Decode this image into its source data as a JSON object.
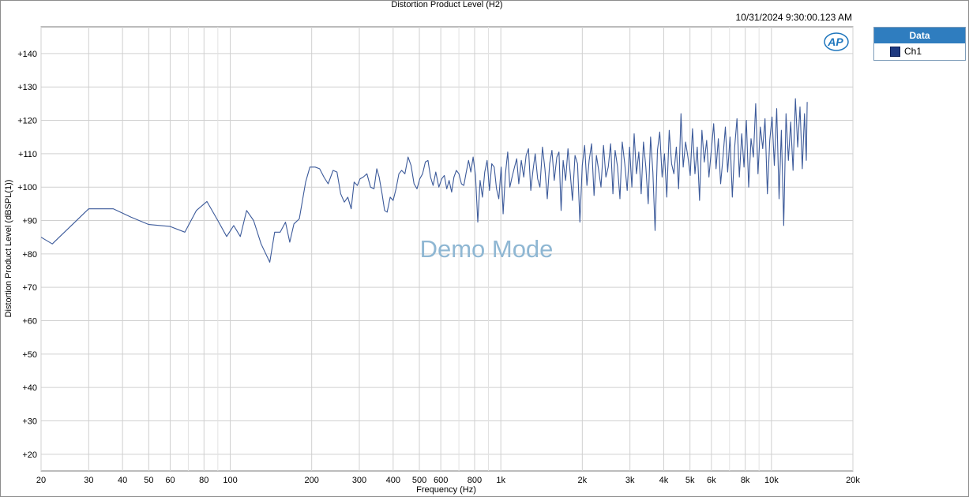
{
  "chart_data": {
    "type": "line",
    "title": "Distortion Product Level (H2)",
    "timestamp": "10/31/2024 9:30:00.123 AM",
    "xlabel": "Frequency (Hz)",
    "ylabel": "Distortion Product Level (dBSPL(1))",
    "x_scale": "log",
    "xlim": [
      20,
      20000
    ],
    "ylim": [
      15,
      148
    ],
    "grid": true,
    "legend_position": "right",
    "watermark": "Demo Mode",
    "x_ticks": [
      {
        "value": 20,
        "label": "20"
      },
      {
        "value": 30,
        "label": "30"
      },
      {
        "value": 40,
        "label": "40"
      },
      {
        "value": 50,
        "label": "50"
      },
      {
        "value": 60,
        "label": "60"
      },
      {
        "value": 80,
        "label": "80"
      },
      {
        "value": 100,
        "label": "100"
      },
      {
        "value": 200,
        "label": "200"
      },
      {
        "value": 300,
        "label": "300"
      },
      {
        "value": 400,
        "label": "400"
      },
      {
        "value": 500,
        "label": "500"
      },
      {
        "value": 600,
        "label": "600"
      },
      {
        "value": 800,
        "label": "800"
      },
      {
        "value": 1000,
        "label": "1k"
      },
      {
        "value": 2000,
        "label": "2k"
      },
      {
        "value": 3000,
        "label": "3k"
      },
      {
        "value": 4000,
        "label": "4k"
      },
      {
        "value": 5000,
        "label": "5k"
      },
      {
        "value": 6000,
        "label": "6k"
      },
      {
        "value": 8000,
        "label": "8k"
      },
      {
        "value": 10000,
        "label": "10k"
      },
      {
        "value": 20000,
        "label": "20k"
      }
    ],
    "x_minor": [
      70,
      90,
      700,
      900,
      7000,
      9000
    ],
    "y_ticks": [
      {
        "value": 20,
        "label": "+20"
      },
      {
        "value": 30,
        "label": "+30"
      },
      {
        "value": 40,
        "label": "+40"
      },
      {
        "value": 50,
        "label": "+50"
      },
      {
        "value": 60,
        "label": "+60"
      },
      {
        "value": 70,
        "label": "+70"
      },
      {
        "value": 80,
        "label": "+80"
      },
      {
        "value": 90,
        "label": "+90"
      },
      {
        "value": 100,
        "label": "+100"
      },
      {
        "value": 110,
        "label": "+110"
      },
      {
        "value": 120,
        "label": "+120"
      },
      {
        "value": 130,
        "label": "+130"
      },
      {
        "value": 140,
        "label": "+140"
      }
    ],
    "series": [
      {
        "name": "Ch1",
        "color": "#3c5a9a",
        "points": [
          [
            20,
            85.0
          ],
          [
            22,
            83.0
          ],
          [
            30,
            93.5
          ],
          [
            37,
            93.5
          ],
          [
            43,
            91.0
          ],
          [
            50,
            88.8
          ],
          [
            60,
            88.2
          ],
          [
            68,
            86.5
          ],
          [
            75,
            93.0
          ],
          [
            82,
            95.7
          ],
          [
            90,
            90.0
          ],
          [
            97,
            85.2
          ],
          [
            103,
            88.5
          ],
          [
            109,
            85.2
          ],
          [
            115,
            93.0
          ],
          [
            122,
            90.0
          ],
          [
            130,
            83.0
          ],
          [
            140,
            77.5
          ],
          [
            146,
            86.5
          ],
          [
            153,
            86.5
          ],
          [
            160,
            89.5
          ],
          [
            166,
            83.5
          ],
          [
            172,
            89.0
          ],
          [
            180,
            90.5
          ],
          [
            190,
            101.5
          ],
          [
            197,
            106.0
          ],
          [
            206,
            106.0
          ],
          [
            214,
            105.5
          ],
          [
            222,
            103.0
          ],
          [
            230,
            101.0
          ],
          [
            240,
            105.0
          ],
          [
            248,
            104.5
          ],
          [
            256,
            98.0
          ],
          [
            264,
            95.5
          ],
          [
            272,
            97.0
          ],
          [
            280,
            93.5
          ],
          [
            287,
            101.5
          ],
          [
            295,
            100.5
          ],
          [
            302,
            102.5
          ],
          [
            310,
            103.0
          ],
          [
            320,
            104.0
          ],
          [
            330,
            100.0
          ],
          [
            340,
            99.5
          ],
          [
            348,
            105.5
          ],
          [
            355,
            103.0
          ],
          [
            364,
            98.0
          ],
          [
            372,
            93.0
          ],
          [
            380,
            92.5
          ],
          [
            390,
            97.0
          ],
          [
            400,
            96.0
          ],
          [
            410,
            99.5
          ],
          [
            420,
            104.0
          ],
          [
            430,
            105.0
          ],
          [
            442,
            104.0
          ],
          [
            454,
            109.0
          ],
          [
            466,
            106.5
          ],
          [
            478,
            101.0
          ],
          [
            490,
            99.5
          ],
          [
            502,
            102.5
          ],
          [
            514,
            104.0
          ],
          [
            526,
            107.5
          ],
          [
            538,
            108.0
          ],
          [
            550,
            103.0
          ],
          [
            562,
            100.5
          ],
          [
            575,
            104.5
          ],
          [
            590,
            100.0
          ],
          [
            605,
            102.5
          ],
          [
            618,
            103.5
          ],
          [
            631,
            99.5
          ],
          [
            644,
            102.0
          ],
          [
            658,
            98.5
          ],
          [
            671,
            103.0
          ],
          [
            685,
            105.0
          ],
          [
            700,
            104.0
          ],
          [
            715,
            101.0
          ],
          [
            730,
            100.5
          ],
          [
            745,
            104.5
          ],
          [
            760,
            108.0
          ],
          [
            775,
            104.5
          ],
          [
            790,
            109.0
          ],
          [
            806,
            103.5
          ],
          [
            822,
            89.5
          ],
          [
            838,
            102.0
          ],
          [
            855,
            97.0
          ],
          [
            872,
            104.5
          ],
          [
            890,
            108.0
          ],
          [
            908,
            99.0
          ],
          [
            926,
            107.0
          ],
          [
            945,
            106.0
          ],
          [
            964,
            99.5
          ],
          [
            983,
            96.5
          ],
          [
            1003,
            106.0
          ],
          [
            1020,
            92.0
          ],
          [
            1040,
            104.0
          ],
          [
            1060,
            110.5
          ],
          [
            1080,
            100.0
          ],
          [
            1100,
            103.0
          ],
          [
            1120,
            105.5
          ],
          [
            1145,
            108.5
          ],
          [
            1165,
            101.0
          ],
          [
            1190,
            108.0
          ],
          [
            1215,
            103.0
          ],
          [
            1240,
            109.5
          ],
          [
            1265,
            111.5
          ],
          [
            1290,
            99.0
          ],
          [
            1315,
            105.0
          ],
          [
            1340,
            110.0
          ],
          [
            1368,
            102.5
          ],
          [
            1395,
            100.0
          ],
          [
            1425,
            112.0
          ],
          [
            1455,
            105.5
          ],
          [
            1485,
            96.5
          ],
          [
            1515,
            107.0
          ],
          [
            1545,
            111.0
          ],
          [
            1575,
            102.0
          ],
          [
            1610,
            109.0
          ],
          [
            1640,
            110.5
          ],
          [
            1670,
            93.0
          ],
          [
            1700,
            108.0
          ],
          [
            1735,
            102.0
          ],
          [
            1770,
            111.5
          ],
          [
            1805,
            104.0
          ],
          [
            1840,
            96.0
          ],
          [
            1880,
            109.5
          ],
          [
            1920,
            107.0
          ],
          [
            1960,
            89.5
          ],
          [
            2000,
            106.5
          ],
          [
            2040,
            112.5
          ],
          [
            2080,
            100.5
          ],
          [
            2120,
            108.0
          ],
          [
            2165,
            113.0
          ],
          [
            2210,
            97.5
          ],
          [
            2255,
            109.5
          ],
          [
            2300,
            105.0
          ],
          [
            2345,
            100.0
          ],
          [
            2395,
            112.5
          ],
          [
            2445,
            103.0
          ],
          [
            2495,
            106.0
          ],
          [
            2545,
            113.0
          ],
          [
            2595,
            98.0
          ],
          [
            2645,
            111.0
          ],
          [
            2700,
            106.0
          ],
          [
            2755,
            96.5
          ],
          [
            2810,
            113.5
          ],
          [
            2870,
            107.0
          ],
          [
            2930,
            99.0
          ],
          [
            2990,
            112.0
          ],
          [
            3050,
            100.0
          ],
          [
            3110,
            116.0
          ],
          [
            3170,
            104.0
          ],
          [
            3235,
            110.5
          ],
          [
            3300,
            98.0
          ],
          [
            3365,
            113.5
          ],
          [
            3435,
            106.0
          ],
          [
            3505,
            95.0
          ],
          [
            3575,
            115.0
          ],
          [
            3645,
            104.5
          ],
          [
            3715,
            87.0
          ],
          [
            3790,
            111.0
          ],
          [
            3865,
            116.5
          ],
          [
            3945,
            103.0
          ],
          [
            4025,
            110.0
          ],
          [
            4105,
            97.0
          ],
          [
            4190,
            117.0
          ],
          [
            4275,
            107.0
          ],
          [
            4360,
            104.0
          ],
          [
            4450,
            112.0
          ],
          [
            4540,
            99.5
          ],
          [
            4630,
            122.0
          ],
          [
            4720,
            106.0
          ],
          [
            4815,
            113.5
          ],
          [
            4915,
            109.0
          ],
          [
            5010,
            103.5
          ],
          [
            5110,
            117.5
          ],
          [
            5215,
            104.0
          ],
          [
            5320,
            112.0
          ],
          [
            5425,
            96.0
          ],
          [
            5535,
            117.0
          ],
          [
            5645,
            107.5
          ],
          [
            5760,
            114.0
          ],
          [
            5875,
            103.0
          ],
          [
            5995,
            111.0
          ],
          [
            6115,
            119.0
          ],
          [
            6240,
            105.5
          ],
          [
            6365,
            114.5
          ],
          [
            6490,
            101.0
          ],
          [
            6620,
            109.0
          ],
          [
            6755,
            118.0
          ],
          [
            6890,
            104.5
          ],
          [
            7030,
            115.0
          ],
          [
            7170,
            97.0
          ],
          [
            7315,
            112.0
          ],
          [
            7460,
            120.5
          ],
          [
            7610,
            103.0
          ],
          [
            7765,
            116.0
          ],
          [
            7920,
            106.0
          ],
          [
            8080,
            120.0
          ],
          [
            8240,
            100.0
          ],
          [
            8405,
            114.5
          ],
          [
            8575,
            109.0
          ],
          [
            8745,
            125.0
          ],
          [
            8920,
            104.0
          ],
          [
            9100,
            118.0
          ],
          [
            9285,
            111.5
          ],
          [
            9470,
            120.5
          ],
          [
            9660,
            98.0
          ],
          [
            9855,
            114.0
          ],
          [
            10050,
            121.0
          ],
          [
            10250,
            106.5
          ],
          [
            10460,
            123.5
          ],
          [
            10670,
            96.5
          ],
          [
            10880,
            117.0
          ],
          [
            11100,
            88.5
          ],
          [
            11320,
            122.0
          ],
          [
            11550,
            108.0
          ],
          [
            11780,
            119.5
          ],
          [
            12020,
            105.0
          ],
          [
            12260,
            126.5
          ],
          [
            12500,
            112.0
          ],
          [
            12750,
            124.0
          ],
          [
            13000,
            105.5
          ],
          [
            13250,
            122.0
          ],
          [
            13450,
            108.0
          ],
          [
            13550,
            125.5
          ]
        ]
      }
    ]
  },
  "legend": {
    "header": "Data",
    "items": [
      {
        "label": "Ch1",
        "color": "#1f3a80"
      }
    ]
  },
  "logo_text": "AP"
}
